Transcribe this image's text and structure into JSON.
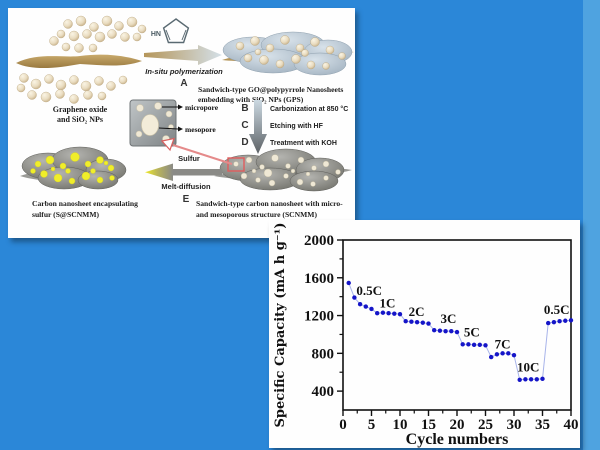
{
  "window": {
    "background": "#2b87d8",
    "right_strip_color": "#4fa3e0"
  },
  "schematic": {
    "go_label": [
      "Graphene oxide",
      "and SiO₂ NPs"
    ],
    "pyrrole_label": "HN",
    "step_a": {
      "letter": "A",
      "label": "In-situ polymerization"
    },
    "gps_label": [
      "Sandwich-type GO@polypyrrole Nanosheets",
      "embedding with SiO₂ NPs (GPS)"
    ],
    "inset": {
      "micropore": "micropore",
      "mesopore": "mesopore"
    },
    "steps": [
      {
        "letter": "B",
        "text": "Carbonization at 850 °C"
      },
      {
        "letter": "C",
        "text": "Etching with HF"
      },
      {
        "letter": "D",
        "text": "Treatment with KOH"
      }
    ],
    "step_e": {
      "letter": "E",
      "top": "Sulfur",
      "bottom": "Melt-diffusion"
    },
    "s_scnmm_label": [
      "Carbon nanosheet encapsulating",
      "sulfur  (S@SCNMM)"
    ],
    "scnmm_label": [
      "Sandwich-type carbon nanosheet with micro-",
      "and mesoporous structure (SCNMM)"
    ]
  },
  "chart_data": {
    "type": "scatter",
    "title": "",
    "xlabel": "Cycle numbers",
    "ylabel": "Specific Capacity (mA h g⁻¹)",
    "xlim": [
      0,
      40
    ],
    "ylim": [
      200,
      2000
    ],
    "xticks": [
      0,
      5,
      10,
      15,
      20,
      25,
      30,
      35,
      40
    ],
    "yticks": [
      400,
      800,
      1200,
      1600,
      2000
    ],
    "yticks_minor": [
      600,
      1000,
      1400,
      1800
    ],
    "xticks_minor": [
      2.5,
      7.5,
      12.5,
      17.5,
      22.5,
      27.5,
      32.5,
      37.5
    ],
    "grid": false,
    "legend": null,
    "point_color": "#1515c8",
    "line_color": "#a8b4ea",
    "x": [
      1,
      2,
      3,
      4,
      5,
      6,
      7,
      8,
      9,
      10,
      11,
      12,
      13,
      14,
      15,
      16,
      17,
      18,
      19,
      20,
      21,
      22,
      23,
      24,
      25,
      26,
      27,
      28,
      29,
      30,
      31,
      32,
      33,
      34,
      35,
      36,
      37,
      38,
      39,
      40
    ],
    "y": [
      1545,
      1390,
      1320,
      1295,
      1270,
      1225,
      1230,
      1225,
      1220,
      1215,
      1140,
      1135,
      1130,
      1125,
      1115,
      1045,
      1040,
      1035,
      1035,
      1025,
      895,
      895,
      890,
      890,
      885,
      760,
      790,
      800,
      800,
      780,
      520,
      525,
      525,
      525,
      530,
      1120,
      1130,
      1140,
      1145,
      1150
    ],
    "rate_segments": [
      {
        "rate": "0.5C",
        "cycles": [
          1,
          5
        ]
      },
      {
        "rate": "1C",
        "cycles": [
          6,
          10
        ]
      },
      {
        "rate": "2C",
        "cycles": [
          11,
          15
        ]
      },
      {
        "rate": "3C",
        "cycles": [
          16,
          20
        ]
      },
      {
        "rate": "5C",
        "cycles": [
          21,
          25
        ]
      },
      {
        "rate": "7C",
        "cycles": [
          26,
          30
        ]
      },
      {
        "rate": "10C",
        "cycles": [
          31,
          35
        ]
      },
      {
        "rate": "0.5C",
        "cycles": [
          36,
          40
        ]
      }
    ],
    "annotations": [
      {
        "text": "0.5C",
        "x": 4.6,
        "y": 1460
      },
      {
        "text": "1C",
        "x": 7.8,
        "y": 1330
      },
      {
        "text": "2C",
        "x": 12.9,
        "y": 1240
      },
      {
        "text": "3C",
        "x": 18.5,
        "y": 1165
      },
      {
        "text": "5C",
        "x": 22.6,
        "y": 1020
      },
      {
        "text": "7C",
        "x": 28,
        "y": 895
      },
      {
        "text": "10C",
        "x": 32.5,
        "y": 650
      },
      {
        "text": "0.5C",
        "x": 37.5,
        "y": 1260
      }
    ]
  }
}
